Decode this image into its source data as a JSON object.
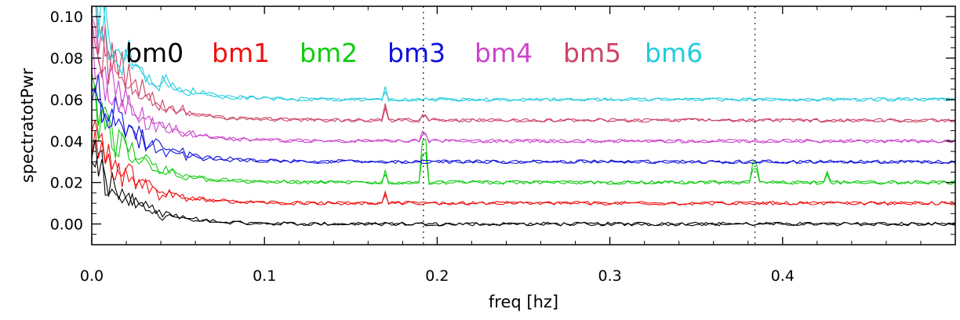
{
  "chart_data": {
    "type": "line",
    "title": "",
    "xlabel": "freq [hz]",
    "ylabel": "spectratotPwr",
    "xlim": [
      0.0,
      0.5
    ],
    "ylim": [
      -0.01,
      0.105
    ],
    "x_ticks": [
      0.0,
      0.1,
      0.2,
      0.3,
      0.4
    ],
    "x_tick_labels": [
      "0.0",
      "0.1",
      "0.2",
      "0.3",
      "0.4"
    ],
    "y_ticks": [
      0.0,
      0.02,
      0.04,
      0.06,
      0.08,
      0.1
    ],
    "y_tick_labels": [
      "0.00",
      "0.02",
      "0.04",
      "0.06",
      "0.08",
      "0.10"
    ],
    "vertical_lines": [
      0.192,
      0.384
    ],
    "grid": false,
    "legend_position": "top-left",
    "series": [
      {
        "name": "bm0",
        "color": "#000000",
        "baseline": 0.0,
        "peaks": []
      },
      {
        "name": "bm1",
        "color": "#ee1111",
        "baseline": 0.01,
        "peaks": [
          [
            0.17,
            0.005
          ]
        ]
      },
      {
        "name": "bm2",
        "color": "#11cc11",
        "baseline": 0.02,
        "peaks": [
          [
            0.17,
            0.006
          ],
          [
            0.192,
            0.02
          ],
          [
            0.384,
            0.01
          ],
          [
            0.426,
            0.005
          ]
        ]
      },
      {
        "name": "bm3",
        "color": "#1111dd",
        "baseline": 0.03,
        "peaks": []
      },
      {
        "name": "bm4",
        "color": "#cc44cc",
        "baseline": 0.04,
        "peaks": [
          [
            0.192,
            0.004
          ]
        ]
      },
      {
        "name": "bm5",
        "color": "#cc4466",
        "baseline": 0.05,
        "peaks": [
          [
            0.17,
            0.008
          ],
          [
            0.192,
            0.003
          ]
        ]
      },
      {
        "name": "bm6",
        "color": "#22ccdd",
        "baseline": 0.06,
        "peaks": [
          [
            0.17,
            0.006
          ]
        ]
      }
    ]
  }
}
